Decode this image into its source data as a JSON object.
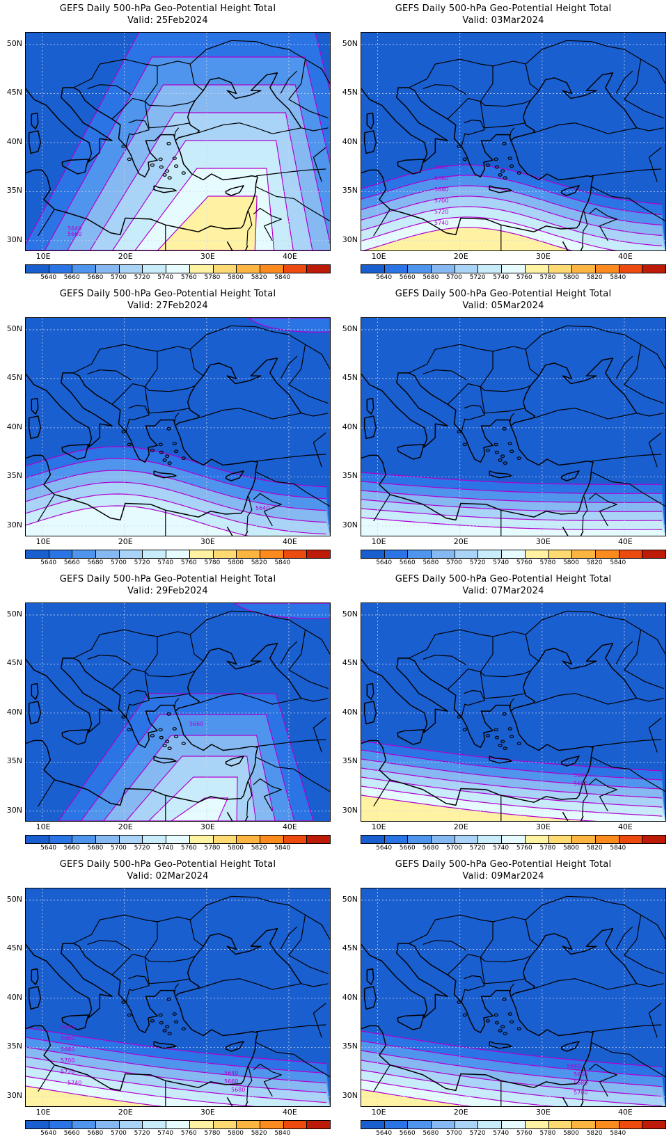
{
  "title_line1": "GEFS Daily 500-hPa Geo-Potential Height Total",
  "panels": [
    {
      "valid": "Valid: 25Feb2024"
    },
    {
      "valid": "Valid: 03Mar2024"
    },
    {
      "valid": "Valid: 27Feb2024"
    },
    {
      "valid": "Valid: 05Mar2024"
    },
    {
      "valid": "Valid: 29Feb2024"
    },
    {
      "valid": "Valid: 07Mar2024"
    },
    {
      "valid": "Valid: 02Mar2024"
    },
    {
      "valid": "Valid: 09Mar2024"
    }
  ],
  "lat_labels": [
    "50N",
    "45N",
    "40N",
    "35N",
    "30N"
  ],
  "lon_labels": [
    "10E",
    "20E",
    "30E",
    "40E"
  ],
  "colorbar_labels": [
    "5640",
    "5660",
    "5680",
    "5700",
    "5720",
    "5740",
    "5760",
    "5780",
    "5800",
    "5820",
    "5840"
  ],
  "colorbar_colors": [
    "#1a5fd0",
    "#2b74e6",
    "#4f95ee",
    "#86b8f2",
    "#a9d4f7",
    "#c8ecfa",
    "#e6fbfd",
    "#fff3a3",
    "#fedb72",
    "#fdb541",
    "#fb8a1f",
    "#ec4a0e",
    "#bd1a08"
  ],
  "contour_color": "#b000d0",
  "contour_labels": {
    "p0": [
      "5640",
      "5660"
    ],
    "p1": [
      "5640",
      "5660",
      "5680",
      "5700",
      "5720",
      "5740"
    ],
    "p2": [
      "5640"
    ],
    "p4": [
      "5660"
    ],
    "p5": [
      "5660",
      "5680"
    ],
    "p6": [
      "5640",
      "5660",
      "5680",
      "5700",
      "5720",
      "5740",
      "5640",
      "5660",
      "5680"
    ],
    "p7": [
      "5640",
      "5660",
      "5680",
      "5700"
    ]
  }
}
